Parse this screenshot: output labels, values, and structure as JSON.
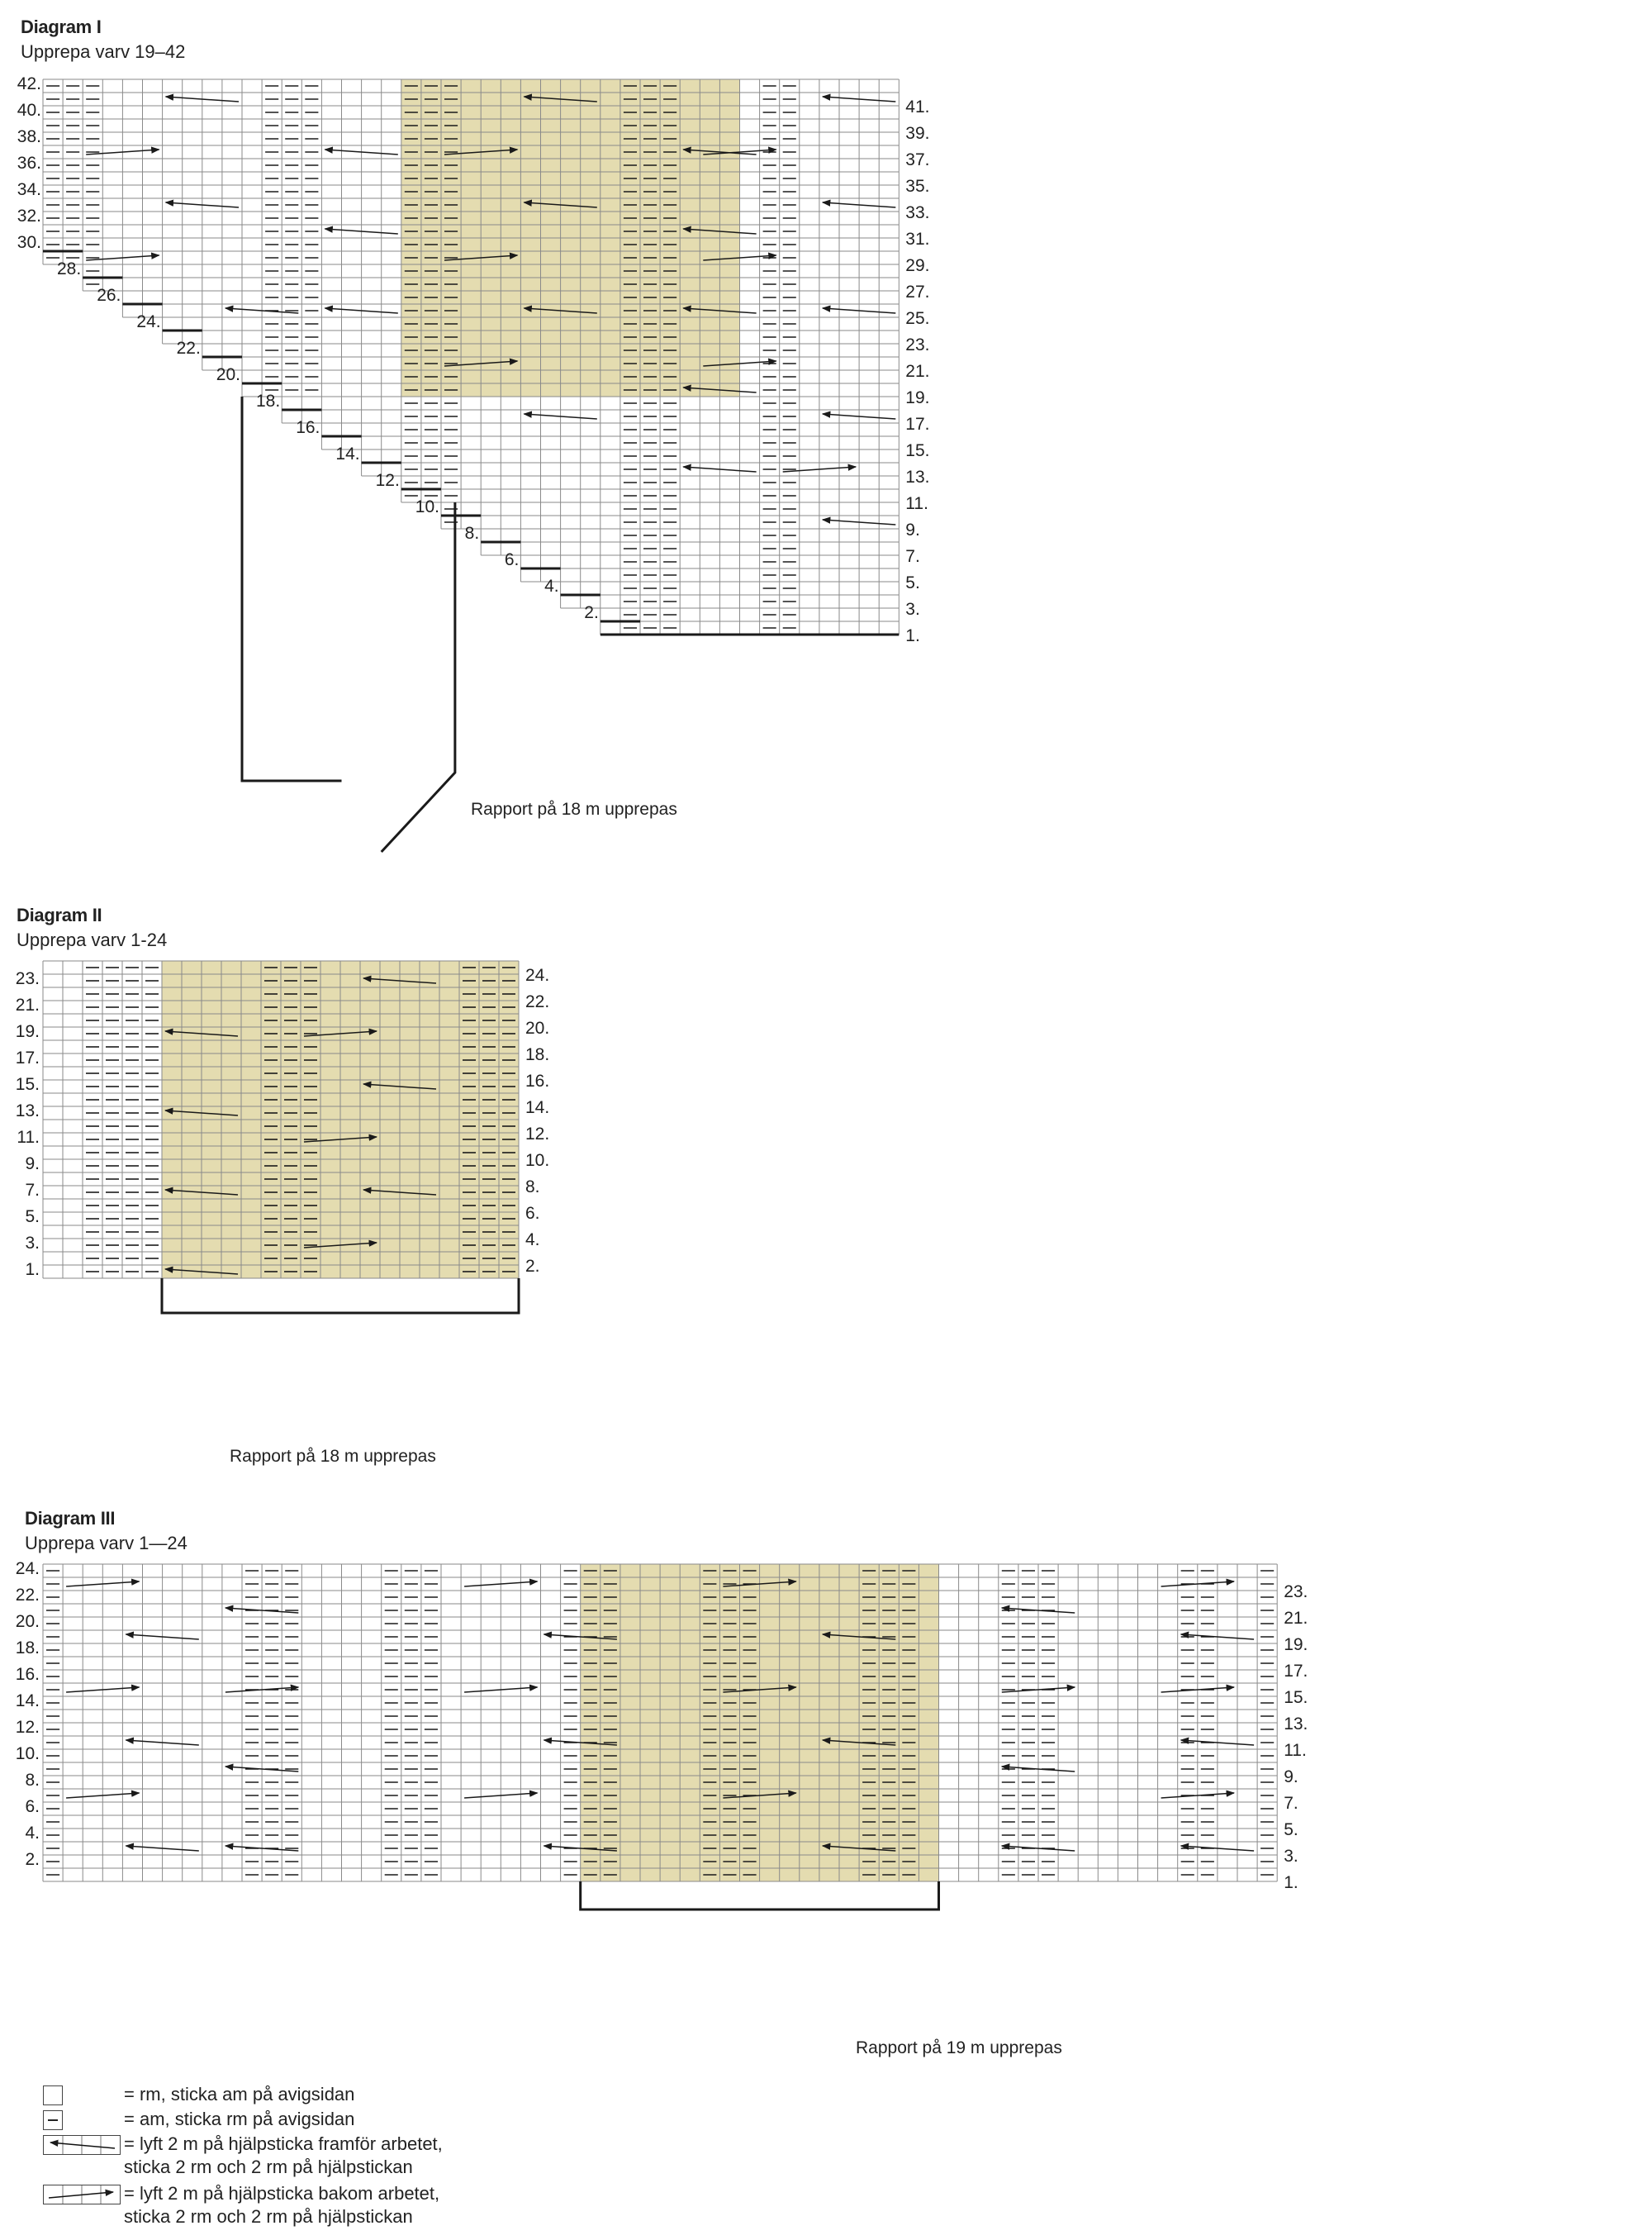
{
  "diagram_1": {
    "title": "Diagram I",
    "subtitle": "Upprepa varv 19–42",
    "repeat_label": "Rapport på 18 m upprepas"
  },
  "diagram_2": {
    "title": "Diagram II",
    "subtitle": "Upprepa varv 1-24",
    "repeat_label": "Rapport på 18 m upprepas"
  },
  "diagram_3": {
    "title": "Diagram III",
    "subtitle": "Upprepa varv 1—24",
    "repeat_label": "Rapport på 19 m upprepas"
  },
  "legend": {
    "knit": "= rm, sticka am på avigsidan",
    "purl": "= am, sticka rm på avigsidan",
    "cable_front_line1": "= lyft 2 m på hjälpsticka framför arbetet,",
    "cable_front_line2": "sticka 2 rm och 2 rm på hjälpstickan",
    "cable_back_line1": "= lyft 2 m på hjälpsticka bakom arbetet,",
    "cable_back_line2": "sticka 2 rm och 2 rm på hjälpstickan"
  },
  "colors": {
    "highlight": "#e4dcb0",
    "grid": "#8a8a8a",
    "line": "#1a1a1a"
  },
  "chart_data": [
    {
      "type": "table",
      "title": "Diagram I",
      "rows": 42,
      "columns": 43,
      "repeat_stitches": 18,
      "left_row_numbers": [
        42,
        40,
        38,
        36,
        34,
        32,
        30,
        28,
        26,
        24,
        22,
        20,
        18,
        16,
        14,
        12,
        10,
        8,
        6,
        4,
        2
      ],
      "right_row_numbers": [
        41,
        39,
        37,
        35,
        33,
        31,
        29,
        27,
        25,
        23,
        21,
        19,
        17,
        15,
        13,
        11,
        9,
        7,
        5,
        3,
        1
      ]
    },
    {
      "type": "table",
      "title": "Diagram II",
      "rows": 24,
      "columns": 24,
      "repeat_stitches": 18,
      "left_row_numbers": [
        23,
        21,
        19,
        17,
        15,
        13,
        11,
        9,
        7,
        5,
        3,
        1
      ],
      "right_row_numbers": [
        24,
        22,
        20,
        18,
        16,
        14,
        12,
        10,
        8,
        6,
        4,
        2
      ]
    },
    {
      "type": "table",
      "title": "Diagram III",
      "rows": 24,
      "columns": 62,
      "repeat_stitches": 19,
      "left_row_numbers": [
        24,
        22,
        20,
        18,
        16,
        14,
        12,
        10,
        8,
        6,
        4,
        2
      ],
      "right_row_numbers": [
        23,
        21,
        19,
        17,
        15,
        13,
        11,
        9,
        7,
        5,
        3,
        1
      ]
    }
  ]
}
